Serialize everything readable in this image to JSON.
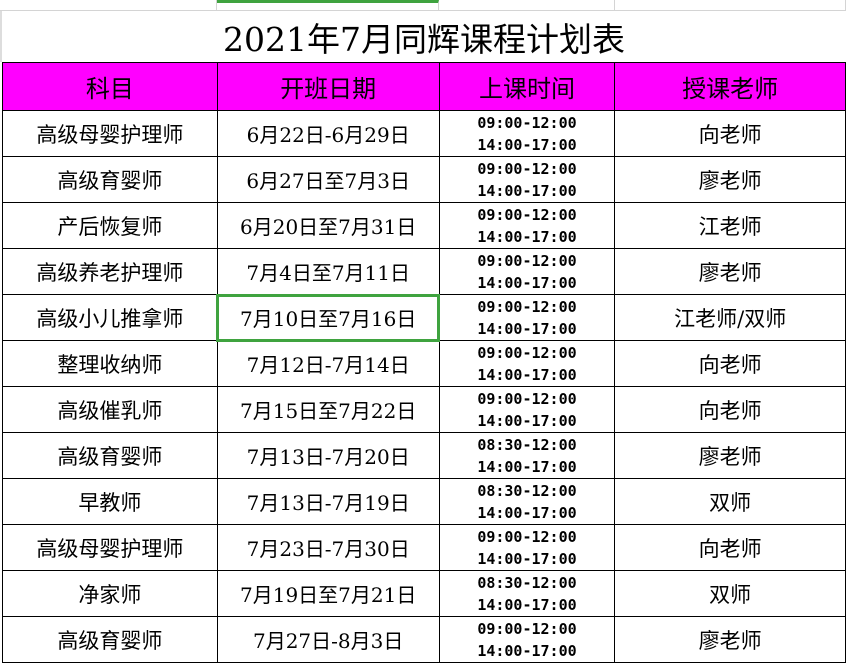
{
  "title": "2021年7月同辉课程计划表",
  "headers": [
    "科目",
    "开班日期",
    "上课时间",
    "授课老师"
  ],
  "rows": [
    {
      "subject": "高级母婴护理师",
      "date": "6月22日-6月29日",
      "time1": "09:00-12:00",
      "time2": "14:00-17:00",
      "teacher": "向老师"
    },
    {
      "subject": "高级育婴师",
      "date": "6月27日至7月3日",
      "time1": "09:00-12:00",
      "time2": "14:00-17:00",
      "teacher": "廖老师"
    },
    {
      "subject": "产后恢复师",
      "date": "6月20日至7月31日",
      "time1": "09:00-12:00",
      "time2": "14:00-17:00",
      "teacher": "江老师"
    },
    {
      "subject": "高级养老护理师",
      "date": "7月4日至7月11日",
      "time1": "09:00-12:00",
      "time2": "14:00-17:00",
      "teacher": "廖老师"
    },
    {
      "subject": "高级小儿推拿师",
      "date": "7月10日至7月16日",
      "time1": "09:00-12:00",
      "time2": "14:00-17:00",
      "teacher": "江老师/双师"
    },
    {
      "subject": "整理收纳师",
      "date": "7月12日-7月14日",
      "time1": "09:00-12:00",
      "time2": "14:00-17:00",
      "teacher": "向老师"
    },
    {
      "subject": "高级催乳师",
      "date": "7月15日至7月22日",
      "time1": "09:00-12:00",
      "time2": "14:00-17:00",
      "teacher": "向老师"
    },
    {
      "subject": "高级育婴师",
      "date": "7月13日-7月20日",
      "time1": "08:30-12:00",
      "time2": "14:00-17:00",
      "teacher": "廖老师"
    },
    {
      "subject": "早教师",
      "date": "7月13日-7月19日",
      "time1": "08:30-12:00",
      "time2": "14:00-17:00",
      "teacher": "双师"
    },
    {
      "subject": "高级母婴护理师",
      "date": "7月23日-7月30日",
      "time1": "09:00-12:00",
      "time2": "14:00-17:00",
      "teacher": "向老师"
    },
    {
      "subject": "净家师",
      "date": "7月19日至7月21日",
      "time1": "08:30-12:00",
      "time2": "14:00-17:00",
      "teacher": "双师"
    },
    {
      "subject": "高级育婴师",
      "date": "7月27日-8月3日",
      "time1": "09:00-12:00",
      "time2": "14:00-17:00",
      "teacher": "廖老师"
    }
  ],
  "colors": {
    "header_bg": "#ff00ff",
    "selection": "#3fa33f"
  }
}
